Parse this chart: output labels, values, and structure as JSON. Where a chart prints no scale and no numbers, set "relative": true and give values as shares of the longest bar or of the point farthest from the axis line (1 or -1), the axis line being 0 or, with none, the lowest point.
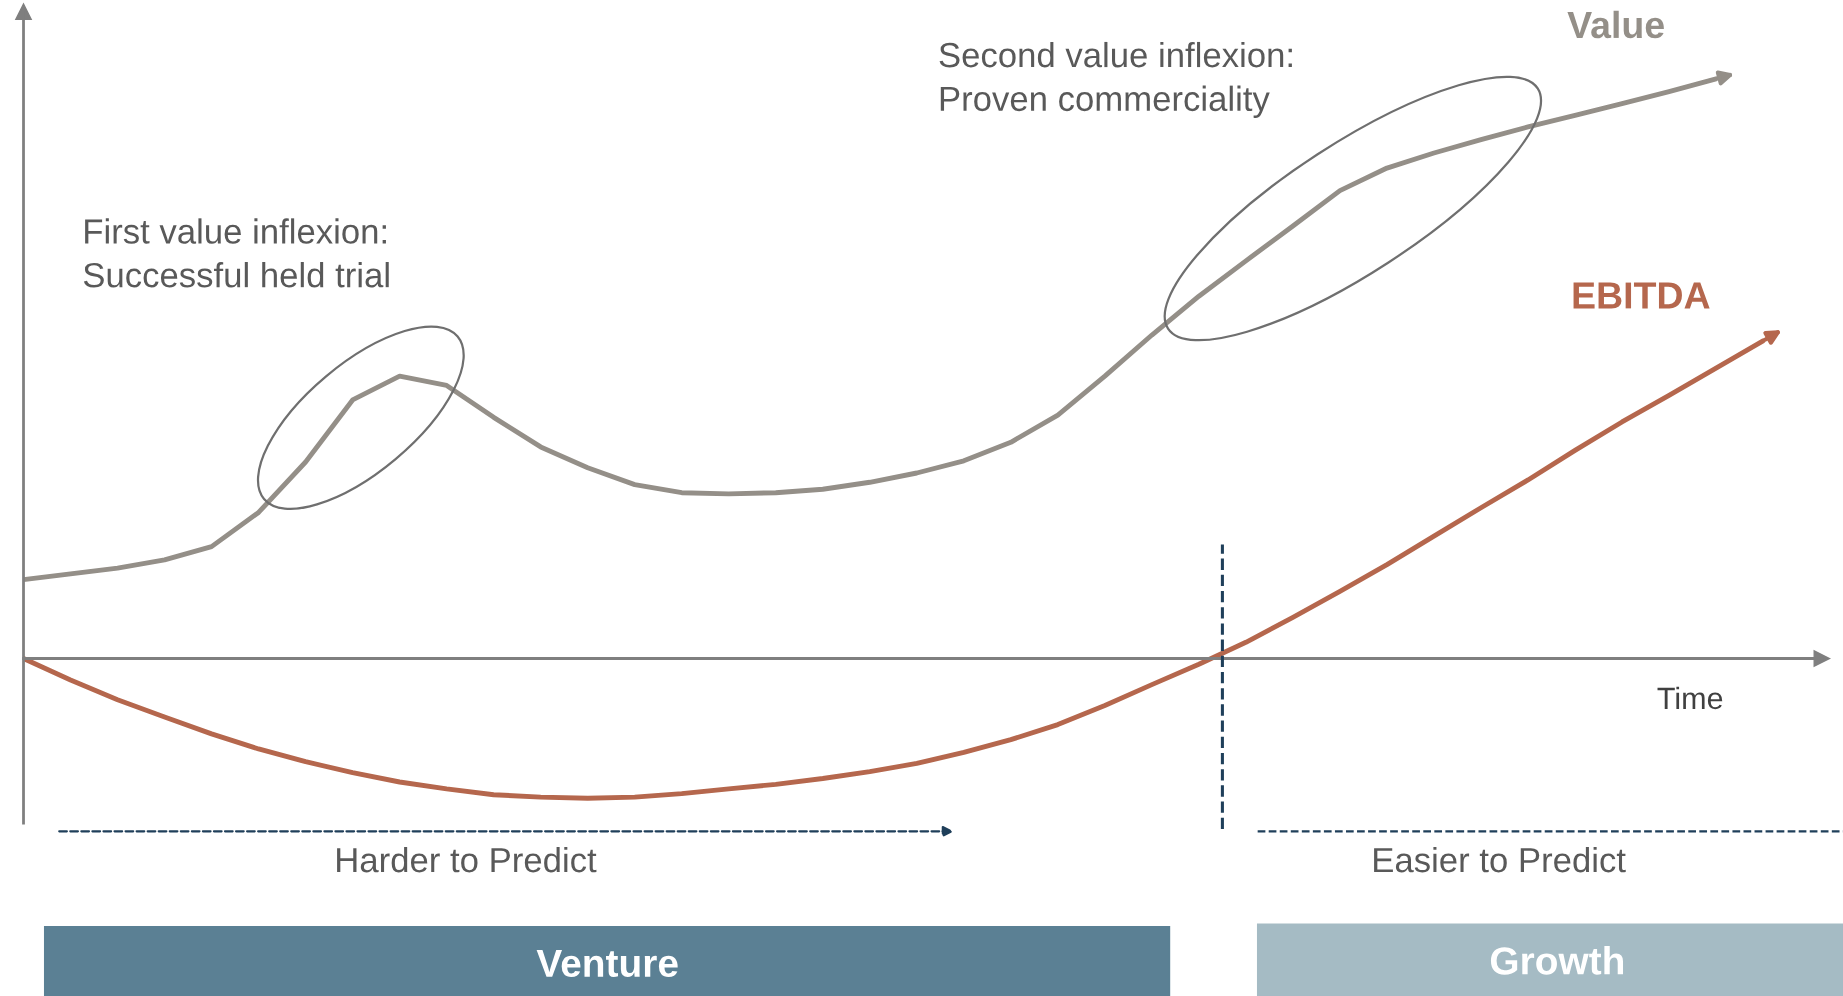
{
  "chart_data": {
    "type": "line",
    "relative": true,
    "xlabel": "Time",
    "categories": [
      null,
      null,
      null,
      null,
      null,
      null,
      null,
      null,
      null,
      null,
      null,
      null,
      null,
      null,
      null,
      null,
      null,
      null,
      null,
      null,
      null,
      null,
      null,
      null,
      null,
      null,
      null,
      null,
      null,
      null,
      null,
      null,
      null,
      null,
      null,
      null,
      null,
      null
    ],
    "series": [
      {
        "name": "Value",
        "color": "#948f88",
        "values": [
          0.136,
          0.146,
          0.156,
          0.17,
          0.193,
          0.252,
          0.339,
          0.446,
          0.487,
          0.471,
          0.416,
          0.365,
          0.329,
          0.3,
          0.286,
          0.284,
          0.286,
          0.292,
          0.304,
          0.32,
          0.341,
          0.373,
          0.42,
          0.487,
          0.558,
          0.625,
          0.686,
          0.746,
          0.807,
          0.846,
          0.872,
          0.895,
          0.917,
          0.937,
          0.957,
          0.978,
          1.0,
          null
        ]
      },
      {
        "name": "EBITDA",
        "color": "#b5674d",
        "values": [
          0,
          -0.037,
          -0.071,
          -0.101,
          -0.13,
          -0.156,
          -0.178,
          -0.197,
          -0.213,
          -0.225,
          -0.235,
          -0.239,
          -0.241,
          -0.239,
          -0.233,
          -0.225,
          -0.217,
          -0.207,
          -0.195,
          -0.181,
          -0.162,
          -0.14,
          -0.114,
          -0.081,
          -0.045,
          -0.01,
          0.028,
          0.071,
          0.116,
          0.162,
          0.211,
          0.26,
          0.308,
          0.359,
          0.408,
          0.454,
          0.501,
          0.548
        ]
      }
    ],
    "annotations": [
      "First value inflexion:\nSuccessful held trial",
      "Second value inflexion:\nProven commerciality",
      "Harder to Predict",
      "Easier to Predict",
      "Venture",
      "Growth"
    ]
  }
}
